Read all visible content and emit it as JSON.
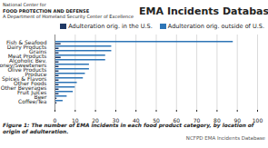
{
  "chart_data": {
    "type": "bar",
    "title": "EMA Incidents Database",
    "orientation": "horizontal",
    "categories": [
      "Fish & Seafood",
      "Dairy Products",
      "Grains",
      "Meat Products",
      "Alcoholic Bev.",
      "Honey/Sweeteners",
      "Olive Products",
      "Produce",
      "Spices & Flavors",
      "Other Foods",
      "Other Beverages",
      "Fruit Juices",
      "Beer",
      "Coffee/Tea"
    ],
    "series": [
      {
        "name": "Adulteration orig. in the U.S.",
        "color": "#1f3864",
        "values": [
          3,
          2,
          2,
          3,
          2,
          2,
          2,
          2,
          2,
          2,
          2,
          2,
          1,
          1
        ]
      },
      {
        "name": "Adulteration orig. outside of U.S.",
        "color": "#2e75b6",
        "values": [
          88,
          28,
          28,
          25,
          25,
          17,
          17,
          15,
          14,
          11,
          10,
          9,
          6,
          4
        ]
      }
    ],
    "xlim": [
      0,
      100
    ],
    "xticks": [
      0,
      10,
      20,
      30,
      40,
      50,
      60,
      70,
      80,
      90,
      100
    ],
    "grid": true,
    "legend": "right",
    "annotations": [
      "National Center for",
      "FOOD PROTECTION AND DEFENSE",
      "A Department of Homeland Security Center of Excellence",
      "Figure 1: The number of EMA incidents in each food product category, by location of origin of adulteration.",
      "NCFPD EMA Incidents Database"
    ]
  }
}
